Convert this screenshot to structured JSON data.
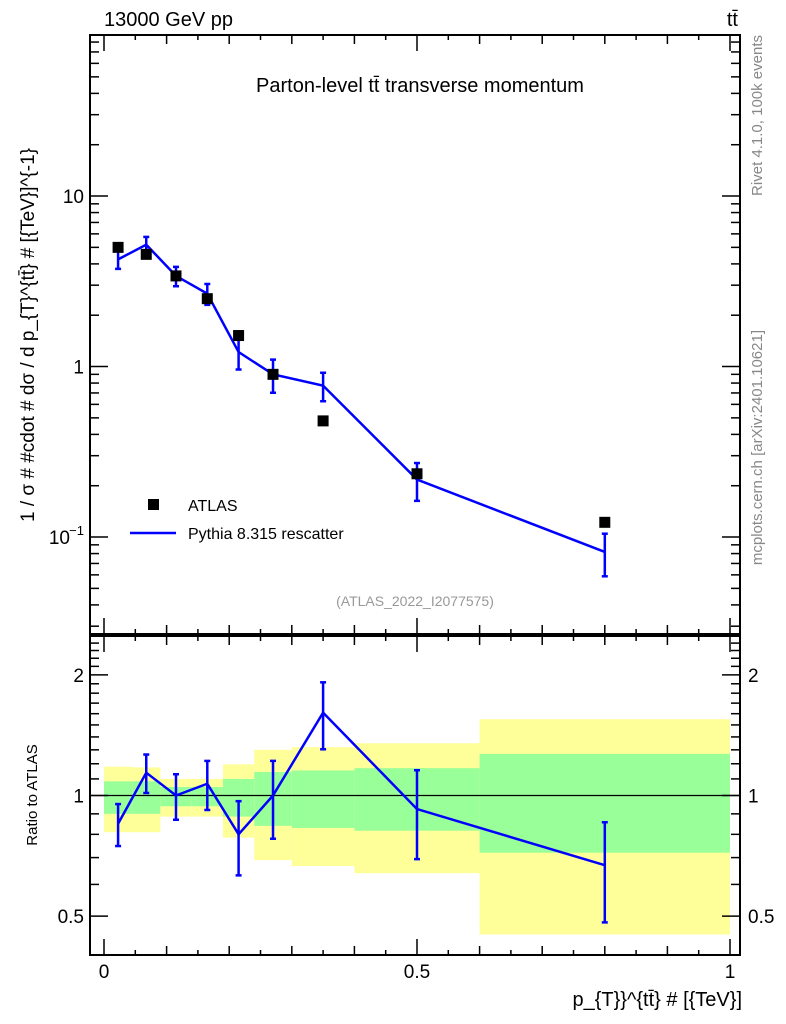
{
  "chart_data": {
    "type": "scatter",
    "header_left": "13000 GeV pp",
    "header_right": "tt̄",
    "title": "Parton-level tt̄ transverse momentum",
    "ylabel": "1 / σ # #cdot # dσ / d p_{T}^{tt̄} # [{TeV}]^{-1}",
    "xlabel": "p_{T}}^{tt̄} # [{TeV}]",
    "ratio_ylabel": "Ratio to ATLAS",
    "side_text_top": "Rivet 4.1.0,  100k events",
    "side_text_bottom": "mcplots.cern.ch [arXiv:2401.10621]",
    "watermark": "(ATLAS_2022_I2077575)",
    "xlim": [
      0,
      1
    ],
    "ylim": [
      0.027,
      88
    ],
    "ratio_ylim": [
      0.4,
      2.5
    ],
    "log_y": true,
    "x_ticks": [
      {
        "v": 0,
        "label": "0"
      },
      {
        "v": 0.5,
        "label": "0.5"
      },
      {
        "v": 1,
        "label": "1"
      }
    ],
    "y_ticks": [
      {
        "v": 10,
        "label": "10"
      },
      {
        "v": 1,
        "label": "1"
      },
      {
        "v": 0.1,
        "label": "10^-1"
      }
    ],
    "ratio_ticks": [
      {
        "v": 2,
        "label": "2"
      },
      {
        "v": 1,
        "label": "1"
      },
      {
        "v": 0.5,
        "label": "0.5"
      }
    ],
    "bin_edges": [
      0,
      0.045,
      0.09,
      0.14,
      0.19,
      0.24,
      0.3,
      0.4,
      0.6,
      1.0
    ],
    "x": [
      0.0225,
      0.0675,
      0.115,
      0.165,
      0.215,
      0.27,
      0.35,
      0.5,
      0.8
    ],
    "series": [
      {
        "name": "ATLAS",
        "color": "#000000",
        "values": [
          5.0,
          4.55,
          3.4,
          2.5,
          1.52,
          0.9,
          0.48,
          0.235,
          0.122
        ],
        "band_inner": [
          [
            0.9,
            1.085
          ],
          [
            0.9,
            1.085
          ],
          [
            0.94,
            1.05
          ],
          [
            0.94,
            1.05
          ],
          [
            0.886,
            1.1
          ],
          [
            0.84,
            1.145
          ],
          [
            0.83,
            1.155
          ],
          [
            0.817,
            1.17
          ],
          [
            0.72,
            1.27
          ]
        ],
        "band_outer": [
          [
            0.81,
            1.18
          ],
          [
            0.81,
            1.175
          ],
          [
            0.886,
            1.1
          ],
          [
            0.886,
            1.1
          ],
          [
            0.785,
            1.196
          ],
          [
            0.69,
            1.3
          ],
          [
            0.667,
            1.32
          ],
          [
            0.64,
            1.35
          ],
          [
            0.45,
            1.55
          ]
        ],
        "band_inner_color": "#99ff99",
        "band_outer_color": "#ffff99"
      },
      {
        "name": "Pythia 8.315 rescatter",
        "color": "#0000ff",
        "ratio": [
          0.85,
          1.14,
          1.0,
          1.07,
          0.8,
          1.0,
          1.61,
          0.925,
          0.67
        ],
        "ratio_err": [
          0.12,
          0.11,
          0.13,
          0.14,
          0.21,
          0.22,
          0.19,
          0.25,
          0.28
        ]
      }
    ],
    "legend_position": "bottom-left"
  }
}
